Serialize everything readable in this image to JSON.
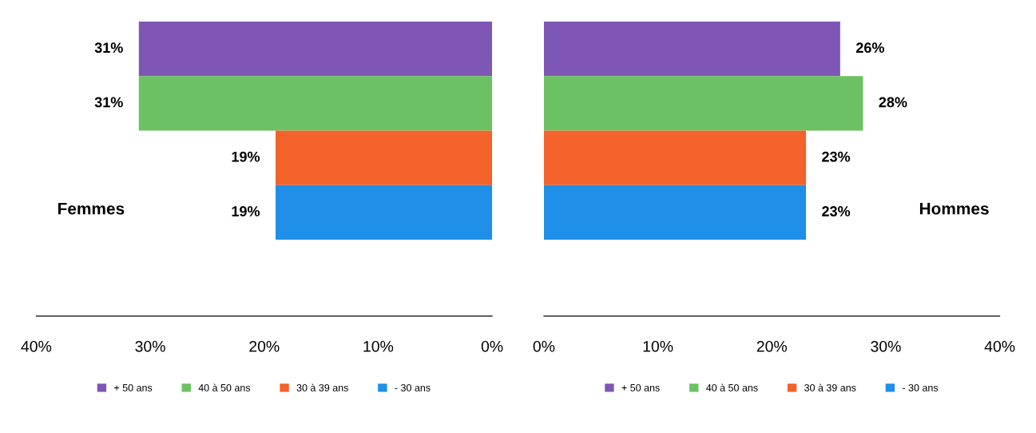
{
  "chart_data": [
    {
      "type": "bar",
      "orientation": "horizontal",
      "stacked": true,
      "title": "Femmes",
      "categories": [
        null,
        null,
        null,
        null
      ],
      "xlim": [
        40,
        0
      ],
      "xticks": [
        {
          "value": 40,
          "label": "40%"
        },
        {
          "value": 30,
          "label": "30%"
        },
        {
          "value": 20,
          "label": "20%"
        },
        {
          "value": 10,
          "label": "10%"
        },
        {
          "value": 0,
          "label": "0%"
        }
      ],
      "legend": "bottom",
      "tick_labels": "x",
      "series": [
        {
          "name": "+ 50 ans",
          "color": "#7e57b4",
          "values": [
            31,
            0,
            0,
            0
          ],
          "value_labels": [
            "31%",
            null,
            null,
            null
          ]
        },
        {
          "name": "40 à 50 ans",
          "color": "#6cc163",
          "values": [
            0,
            31,
            0,
            0
          ],
          "value_labels": [
            null,
            "31%",
            null,
            null
          ]
        },
        {
          "name": "30 à 39 ans",
          "color": "#f2622a",
          "values": [
            0,
            0,
            19,
            0
          ],
          "value_labels": [
            null,
            null,
            "19%",
            null
          ]
        },
        {
          "name": "- 30 ans",
          "color": "#1f8fe8",
          "values": [
            0,
            0,
            0,
            19
          ],
          "value_labels": [
            null,
            null,
            null,
            "19%"
          ]
        }
      ]
    },
    {
      "type": "bar",
      "orientation": "horizontal",
      "stacked": true,
      "title": "Hommes",
      "categories": [
        null,
        null,
        null,
        null
      ],
      "xlim": [
        0,
        40
      ],
      "xticks": [
        {
          "value": 0,
          "label": "0%"
        },
        {
          "value": 10,
          "label": "10%"
        },
        {
          "value": 20,
          "label": "20%"
        },
        {
          "value": 30,
          "label": "30%"
        },
        {
          "value": 40,
          "label": "40%"
        }
      ],
      "legend": "bottom",
      "tick_labels": "x",
      "series": [
        {
          "name": "+ 50 ans",
          "color": "#7e57b4",
          "values": [
            26,
            0,
            0,
            0
          ],
          "value_labels": [
            "26%",
            null,
            null,
            null
          ]
        },
        {
          "name": "40 à 50 ans",
          "color": "#6cc163",
          "values": [
            0,
            28,
            0,
            0
          ],
          "value_labels": [
            null,
            "28%",
            null,
            null
          ]
        },
        {
          "name": "30 à 39 ans",
          "color": "#f2622a",
          "values": [
            0,
            0,
            23,
            0
          ],
          "value_labels": [
            null,
            null,
            "23%",
            null
          ]
        },
        {
          "name": "- 30 ans",
          "color": "#1f8fe8",
          "values": [
            0,
            0,
            0,
            23
          ],
          "value_labels": [
            null,
            null,
            null,
            "23%"
          ]
        }
      ]
    }
  ]
}
